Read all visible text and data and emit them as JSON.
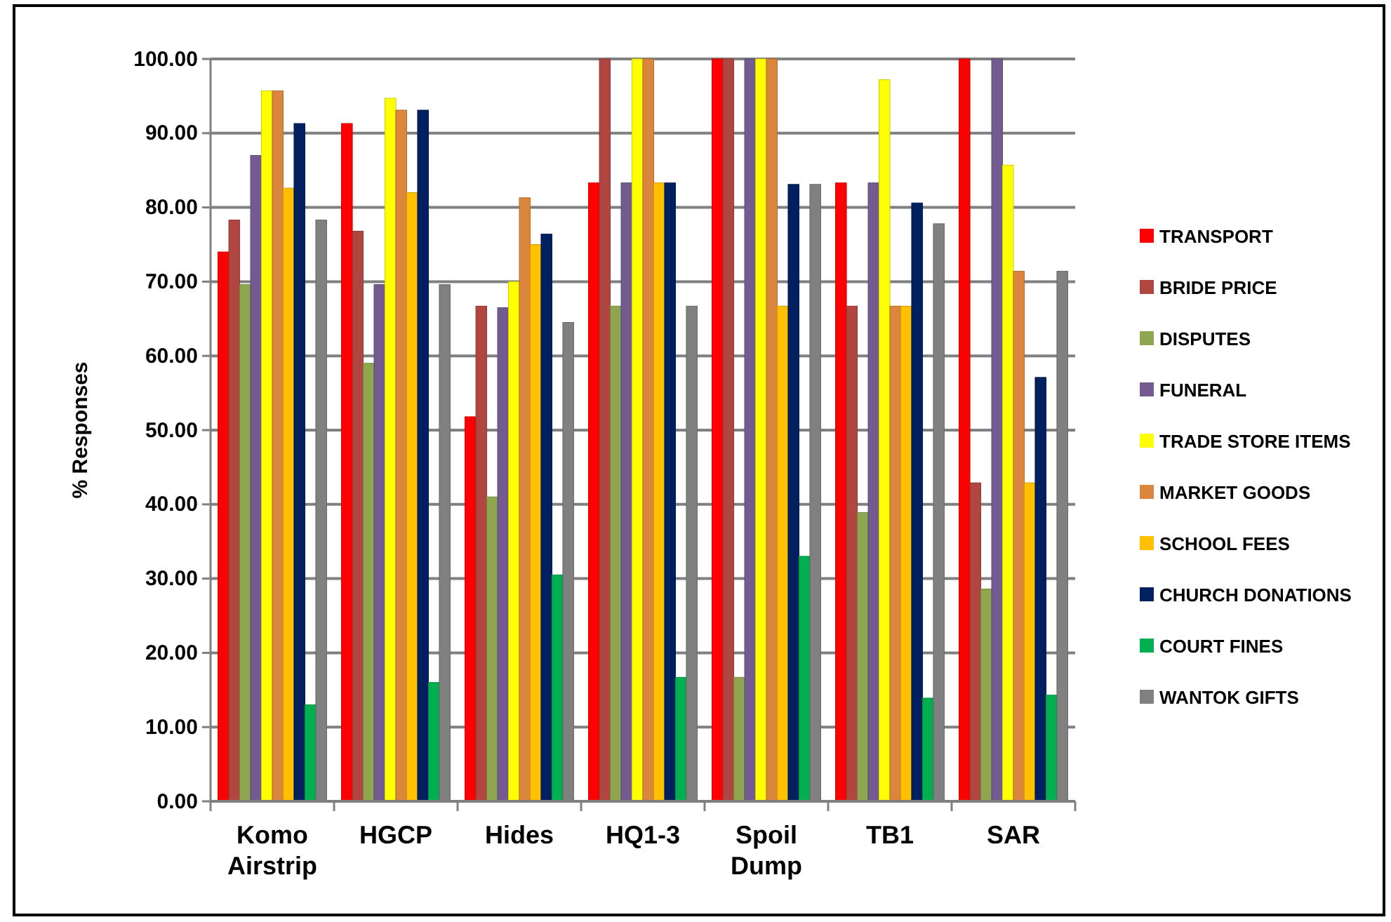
{
  "chart_data": {
    "type": "bar",
    "ylabel": "% Responses",
    "categories": [
      "Komo Airstrip",
      "HGCP",
      "Hides",
      "HQ1-3",
      "Spoil Dump",
      "TB1",
      "SAR"
    ],
    "series": [
      {
        "name": "TRANSPORT",
        "color": "#ff0000",
        "values": [
          74,
          91.3,
          51.8,
          83.3,
          100,
          83.3,
          100
        ]
      },
      {
        "name": "BRIDE PRICE",
        "color": "#b0463f",
        "values": [
          78.3,
          76.8,
          66.7,
          100,
          100,
          66.7,
          42.9
        ]
      },
      {
        "name": "DISPUTES",
        "color": "#8ea64f",
        "values": [
          69.6,
          59,
          41,
          66.7,
          16.7,
          38.9,
          28.6
        ]
      },
      {
        "name": "FUNERAL",
        "color": "#735a90",
        "values": [
          87,
          69.6,
          66.5,
          83.3,
          100,
          83.3,
          100
        ]
      },
      {
        "name": "TRADE STORE ITEMS",
        "color": "#ffff00",
        "values": [
          95.7,
          94.7,
          70,
          100,
          100,
          97.2,
          85.7
        ]
      },
      {
        "name": "MARKET GOODS",
        "color": "#dc853c",
        "values": [
          95.7,
          93.1,
          81.3,
          100,
          100,
          66.7,
          71.4
        ]
      },
      {
        "name": "SCHOOL FEES",
        "color": "#ffc000",
        "values": [
          82.6,
          82,
          75,
          83.3,
          66.7,
          66.7,
          42.9
        ]
      },
      {
        "name": "CHURCH DONATIONS",
        "color": "#002060",
        "values": [
          91.3,
          93.1,
          76.4,
          83.3,
          83.1,
          80.6,
          57.1
        ]
      },
      {
        "name": "COURT FINES",
        "color": "#00b050",
        "values": [
          13,
          16,
          30.5,
          16.7,
          33,
          13.9,
          14.3
        ]
      },
      {
        "name": "WANTOK GIFTS",
        "color": "#808080",
        "values": [
          78.3,
          69.6,
          64.5,
          66.7,
          83.1,
          77.8,
          71.4
        ]
      }
    ],
    "ylim": [
      0,
      100
    ],
    "yticks": [
      {
        "value": 0,
        "label": "0.00"
      },
      {
        "value": 10,
        "label": "10.00"
      },
      {
        "value": 20,
        "label": "20.00"
      },
      {
        "value": 30,
        "label": "30.00"
      },
      {
        "value": 40,
        "label": "40.00"
      },
      {
        "value": 50,
        "label": "50.00"
      },
      {
        "value": 60,
        "label": "60.00"
      },
      {
        "value": 70,
        "label": "70.00"
      },
      {
        "value": 80,
        "label": "80.00"
      },
      {
        "value": 90,
        "label": "90.00"
      },
      {
        "value": 100,
        "label": "100.00"
      }
    ],
    "grid": "y",
    "legend": "right"
  }
}
